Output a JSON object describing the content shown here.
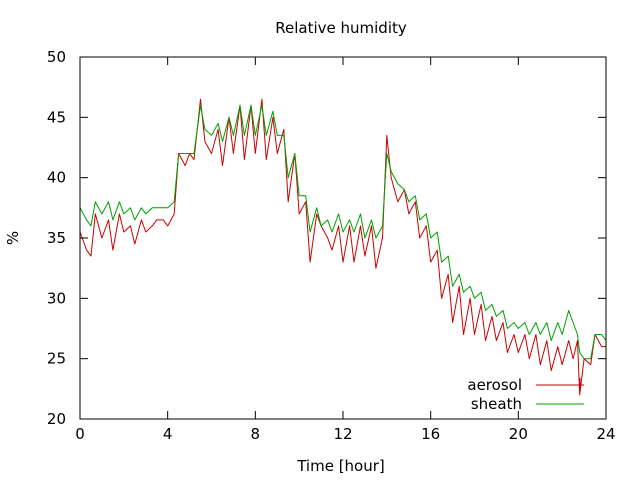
{
  "chart_data": {
    "type": "line",
    "title": "Relative humidity",
    "xlabel": "Time [hour]",
    "ylabel": "%",
    "xlim": [
      0,
      24
    ],
    "ylim": [
      20,
      50
    ],
    "xticks": [
      0,
      4,
      8,
      12,
      16,
      20,
      24
    ],
    "yticks": [
      20,
      25,
      30,
      35,
      40,
      45,
      50
    ],
    "grid": false,
    "legend_position": "bottom-right",
    "series": [
      {
        "name": "aerosol",
        "color": "#cc0000",
        "x": [
          0,
          0.3,
          0.5,
          0.7,
          1.0,
          1.3,
          1.5,
          1.8,
          2.0,
          2.3,
          2.5,
          2.8,
          3.0,
          3.3,
          3.5,
          3.8,
          4.0,
          4.3,
          4.5,
          4.8,
          5.0,
          5.2,
          5.5,
          5.7,
          6.0,
          6.3,
          6.5,
          6.8,
          7.0,
          7.3,
          7.5,
          7.8,
          8.0,
          8.3,
          8.5,
          8.8,
          9.0,
          9.3,
          9.5,
          9.8,
          10.0,
          10.3,
          10.5,
          10.8,
          11.0,
          11.3,
          11.5,
          11.8,
          12.0,
          12.3,
          12.5,
          12.8,
          13.0,
          13.3,
          13.5,
          13.8,
          14.0,
          14.2,
          14.5,
          14.8,
          15.0,
          15.3,
          15.5,
          15.8,
          16.0,
          16.3,
          16.5,
          16.8,
          17.0,
          17.3,
          17.5,
          17.8,
          18.0,
          18.3,
          18.5,
          18.8,
          19.0,
          19.3,
          19.5,
          19.8,
          20.0,
          20.3,
          20.5,
          20.8,
          21.0,
          21.3,
          21.5,
          21.8,
          22.0,
          22.3,
          22.5,
          22.7,
          22.8,
          23.0,
          23.3,
          23.5,
          23.8,
          24.0
        ],
        "y": [
          35.5,
          34,
          33.5,
          37,
          35,
          36.5,
          34,
          37,
          35.5,
          36,
          34.5,
          36.5,
          35.5,
          36,
          36.5,
          36.5,
          36,
          37,
          42,
          41,
          42,
          41.5,
          46.5,
          43,
          42,
          44,
          41,
          45,
          42,
          46,
          41.5,
          46,
          42,
          46.5,
          41.5,
          45,
          42,
          44,
          38,
          42,
          37,
          38,
          33,
          37,
          36,
          35,
          34,
          36,
          33,
          36,
          33,
          36,
          33.5,
          36,
          32.5,
          35,
          43.5,
          40,
          38,
          39,
          37,
          38,
          35,
          36,
          33,
          34,
          30,
          32,
          28,
          31,
          27,
          30,
          27,
          29.5,
          26.5,
          28.5,
          26.5,
          28,
          25.5,
          27,
          25.5,
          27,
          25,
          27,
          24.5,
          26.5,
          24,
          26,
          24.5,
          26.5,
          25,
          26.5,
          22,
          25,
          24.5,
          27,
          26,
          26
        ]
      },
      {
        "name": "sheath",
        "color": "#00a000",
        "x": [
          0,
          0.3,
          0.5,
          0.7,
          1.0,
          1.3,
          1.5,
          1.8,
          2.0,
          2.3,
          2.5,
          2.8,
          3.0,
          3.3,
          3.5,
          3.8,
          4.0,
          4.3,
          4.5,
          4.8,
          5.0,
          5.2,
          5.5,
          5.7,
          6.0,
          6.3,
          6.5,
          6.8,
          7.0,
          7.3,
          7.5,
          7.8,
          8.0,
          8.3,
          8.5,
          8.8,
          9.0,
          9.3,
          9.5,
          9.8,
          10.0,
          10.3,
          10.5,
          10.8,
          11.0,
          11.3,
          11.5,
          11.8,
          12.0,
          12.3,
          12.5,
          12.8,
          13.0,
          13.3,
          13.5,
          13.8,
          14.0,
          14.2,
          14.5,
          14.8,
          15.0,
          15.3,
          15.5,
          15.8,
          16.0,
          16.3,
          16.5,
          16.8,
          17.0,
          17.3,
          17.5,
          17.8,
          18.0,
          18.3,
          18.5,
          18.8,
          19.0,
          19.3,
          19.5,
          19.8,
          20.0,
          20.3,
          20.5,
          20.8,
          21.0,
          21.3,
          21.5,
          21.8,
          22.0,
          22.3,
          22.5,
          22.7,
          22.8,
          23.0,
          23.3,
          23.5,
          23.8,
          24.0
        ],
        "y": [
          37.5,
          36.5,
          36,
          38,
          37,
          38,
          36.5,
          38,
          37,
          37.5,
          36.5,
          37.5,
          37,
          37.5,
          37.5,
          37.5,
          37.5,
          38,
          42,
          42,
          42,
          42,
          46,
          44,
          43.5,
          44.5,
          43,
          45,
          43.5,
          46,
          43.5,
          46,
          43.5,
          46,
          43.5,
          45.5,
          43.5,
          43.5,
          40,
          42,
          38.5,
          38.5,
          35.5,
          37.5,
          36,
          36.5,
          35.5,
          37,
          35.5,
          36.5,
          35.5,
          37,
          35,
          36.5,
          35,
          36,
          42,
          40.5,
          39.5,
          39,
          38,
          38.5,
          36.5,
          37,
          35,
          35.5,
          33,
          33.5,
          31,
          32,
          30.5,
          31,
          30,
          30.5,
          29,
          29.5,
          28.5,
          29,
          27.5,
          28,
          27.5,
          28,
          27,
          28,
          27,
          28,
          26.5,
          28,
          27,
          29,
          28,
          27,
          25.5,
          25,
          25,
          27,
          27,
          26.5
        ]
      }
    ]
  }
}
